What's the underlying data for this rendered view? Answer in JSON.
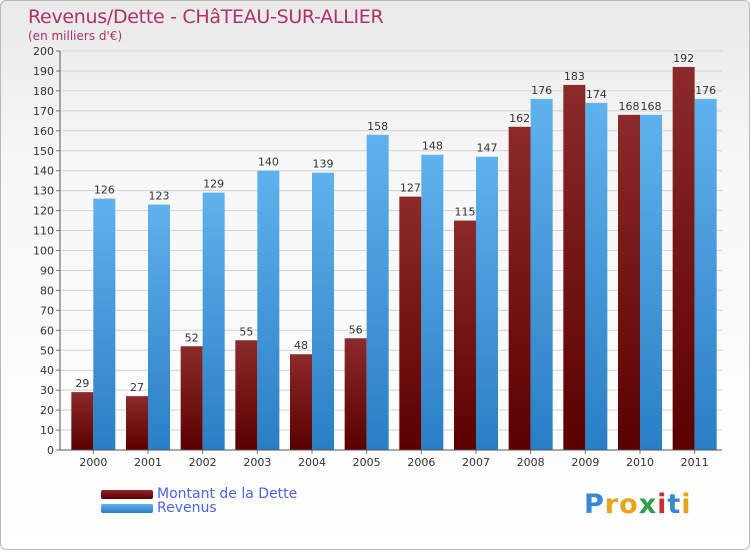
{
  "header": {
    "title": "Revenus/Dette - CHâTEAU-SUR-ALLIER",
    "subtitle": "(en milliers d'€)"
  },
  "chart_data": {
    "type": "bar",
    "title": "Revenus/Dette - CHâTEAU-SUR-ALLIER",
    "ylabel": "(en milliers d'€)",
    "xlabel": "",
    "categories": [
      "2000",
      "2001",
      "2002",
      "2003",
      "2004",
      "2005",
      "2006",
      "2007",
      "2008",
      "2009",
      "2010",
      "2011"
    ],
    "series": [
      {
        "name": "Montant de la Dette",
        "color": "#6e0a0a",
        "values": [
          29,
          27,
          52,
          55,
          48,
          56,
          127,
          115,
          162,
          183,
          168,
          192
        ]
      },
      {
        "name": "Revenus",
        "color": "#4ea6e4",
        "values": [
          126,
          123,
          129,
          140,
          139,
          158,
          148,
          147,
          176,
          174,
          168,
          176
        ]
      }
    ],
    "ylim": [
      0,
      200
    ],
    "yticks": [
      0,
      10,
      20,
      30,
      40,
      50,
      60,
      70,
      80,
      90,
      100,
      110,
      120,
      130,
      140,
      150,
      160,
      170,
      180,
      190,
      200
    ],
    "grid": true,
    "legend_position": "bottom-left"
  },
  "logo": {
    "letters": [
      "P",
      "r",
      "o",
      "x",
      "i",
      "t",
      "i"
    ],
    "colors": [
      "#3a86d4",
      "#e8a21c",
      "#e8a21c",
      "#2f9e46",
      "#c8322e",
      "#3a86d4",
      "#e8a21c"
    ]
  }
}
